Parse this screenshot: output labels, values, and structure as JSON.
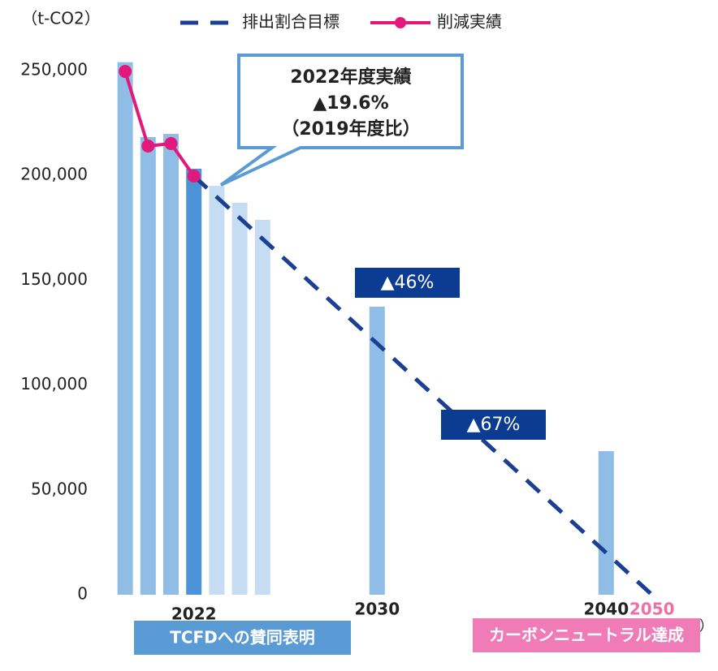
{
  "chart_data": {
    "type": "bar",
    "y_unit_label": "（t-CO2）",
    "x_unit_label": "（年度）",
    "categories": [
      null,
      null,
      null,
      "2022",
      null,
      null,
      null,
      null,
      null,
      null,
      null,
      "2030",
      null,
      null,
      null,
      null,
      null,
      null,
      null,
      null,
      null,
      "2040",
      null,
      "2050"
    ],
    "values": [
      254000,
      218300,
      219800,
      203200,
      195000,
      187000,
      178800,
      null,
      null,
      null,
      null,
      137400,
      null,
      null,
      null,
      null,
      null,
      null,
      null,
      null,
      null,
      68500,
      null,
      null
    ],
    "colors": [
      "#8fbde6",
      "#8fbde6",
      "#8fbde6",
      "#4d93d8",
      "#c6dcf2",
      "#c6dcf2",
      "#c6dcf2",
      null,
      null,
      null,
      null,
      "#8fbde6",
      null,
      null,
      null,
      null,
      null,
      null,
      null,
      null,
      null,
      "#8fbde6",
      null,
      null
    ],
    "series": [
      {
        "name": "排出割合目標",
        "color": "#1b3f94",
        "dashed": true,
        "values": [
          null,
          null,
          null,
          199700,
          189700,
          179700,
          169700,
          159800,
          149800,
          139800,
          129800,
          119800,
          109800,
          99800,
          89900,
          79900,
          69900,
          59900,
          49900,
          39900,
          30000,
          20000,
          10000,
          0
        ]
      },
      {
        "name": "削減実績",
        "color": "#e3187b",
        "markers": true,
        "values": [
          249600,
          214000,
          215200,
          199700,
          null,
          null,
          null,
          null,
          null,
          null,
          null,
          null,
          null,
          null,
          null,
          null,
          null,
          null,
          null,
          null,
          null,
          null,
          null,
          null
        ]
      }
    ],
    "ylim": [
      0,
      250000
    ],
    "yticks": [
      0,
      {
        "value": 50000,
        "label": "50,000"
      },
      {
        "value": 100000,
        "label": "100,000"
      },
      {
        "value": 150000,
        "label": "150,000"
      },
      {
        "value": 200000,
        "label": "200,000"
      },
      {
        "value": 250000,
        "label": "250,000"
      }
    ],
    "callout": [
      "2022年度実績",
      "▲19.6%",
      "（2019年度比）"
    ],
    "reduction_labels": [
      "▲46%",
      "▲67%"
    ],
    "milestones": [
      "TCFDへの賛同表明",
      "カーボンニュートラル達成"
    ]
  }
}
